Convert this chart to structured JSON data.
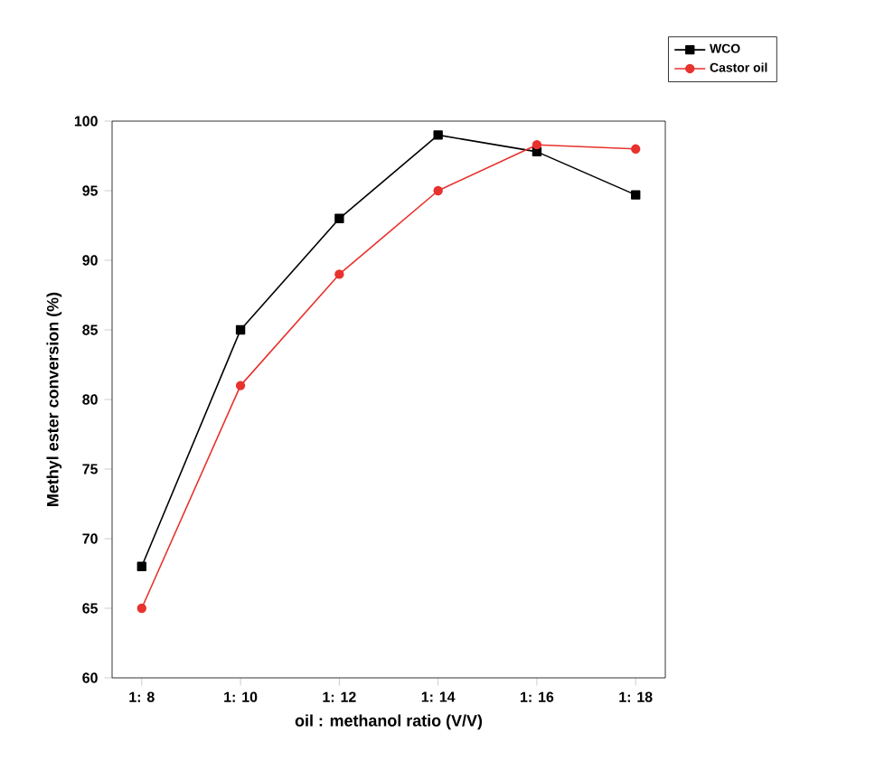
{
  "chart_data": {
    "type": "line",
    "xlabel": "oil : methanol ratio (V/V)",
    "ylabel": "Methyl ester conversion (%)",
    "categories": [
      "1: 8",
      "1: 10",
      "1: 12",
      "1: 14",
      "1: 16",
      "1: 18"
    ],
    "series": [
      {
        "name": "WCO",
        "color": "#000000",
        "marker": "square",
        "values": [
          68,
          85,
          93,
          99,
          97.8,
          94.7
        ]
      },
      {
        "name": "Castor oil",
        "color": "#e8322d",
        "marker": "circle",
        "values": [
          65,
          81,
          89,
          95,
          98.3,
          98
        ]
      }
    ],
    "ylim": [
      60,
      100
    ],
    "yticks": [
      60,
      65,
      70,
      75,
      80,
      85,
      90,
      95,
      100
    ],
    "legend": "top right",
    "grid": false,
    "line_style": "solid"
  }
}
